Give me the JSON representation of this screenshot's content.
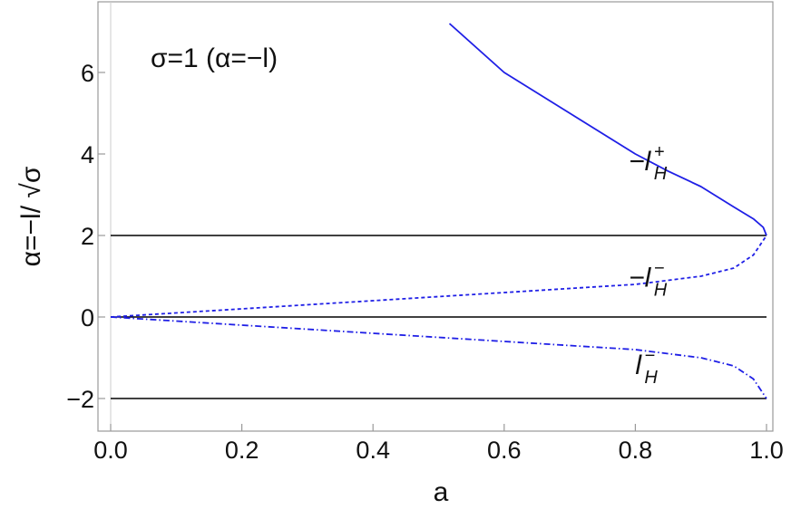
{
  "chart_data": {
    "type": "line",
    "xlabel": "a",
    "ylabel": "α=−l/ √σ",
    "xlim": [
      0.0,
      1.0
    ],
    "ylim": [
      -2.5,
      7.5
    ],
    "grid": false,
    "x_ticks": [
      "0.0",
      "0.2",
      "0.4",
      "0.6",
      "0.8",
      "1.0"
    ],
    "y_ticks": [
      "−2",
      "0",
      "2",
      "4",
      "6"
    ],
    "x_tick_values": [
      0.0,
      0.2,
      0.4,
      0.6,
      0.8,
      1.0
    ],
    "y_tick_values": [
      -2,
      0,
      2,
      4,
      6
    ],
    "annotation": "σ=1 (α=−l)",
    "colors": {
      "curves": "#1f1fe6",
      "reference_lines": "#000000",
      "frame": "#999999"
    },
    "reference_lines": [
      {
        "y": 2,
        "xrange": [
          0.0,
          1.0
        ]
      },
      {
        "y": 0,
        "xrange": [
          0.0,
          1.0
        ]
      },
      {
        "y": -2,
        "xrange": [
          0.0,
          1.0
        ]
      }
    ],
    "series": [
      {
        "label": "−l",
        "label_sup": "+",
        "label_sub": "H",
        "label_at": [
          0.79,
          3.6
        ],
        "style": "solid",
        "x": [
          0.5166,
          0.6,
          0.7,
          0.8,
          0.85,
          0.9,
          0.95,
          0.98,
          0.995,
          1.0
        ],
        "y": [
          7.2,
          6.0,
          5.0,
          4.0,
          3.58,
          3.2,
          2.7,
          2.41,
          2.2,
          2.0
        ]
      },
      {
        "label": "−l",
        "label_sup": "−",
        "label_sub": "H",
        "label_at": [
          0.79,
          0.75
        ],
        "style": "dashed",
        "x": [
          0.0,
          0.1,
          0.2,
          0.3,
          0.4,
          0.5,
          0.6,
          0.7,
          0.8,
          0.85,
          0.9,
          0.95,
          0.98,
          1.0
        ],
        "y": [
          0.0,
          0.1,
          0.2,
          0.3,
          0.4,
          0.5,
          0.6,
          0.7,
          0.8,
          0.9,
          1.0,
          1.2,
          1.52,
          2.0
        ]
      },
      {
        "label": "l",
        "label_sup": "−",
        "label_sub": "H",
        "label_at": [
          0.8,
          -1.4
        ],
        "style": "dashdot",
        "x": [
          0.0,
          0.1,
          0.2,
          0.3,
          0.4,
          0.5,
          0.6,
          0.7,
          0.8,
          0.85,
          0.9,
          0.95,
          0.98,
          1.0
        ],
        "y": [
          0.0,
          -0.1,
          -0.2,
          -0.3,
          -0.4,
          -0.5,
          -0.6,
          -0.7,
          -0.8,
          -0.9,
          -1.0,
          -1.2,
          -1.52,
          -2.0
        ]
      }
    ]
  }
}
